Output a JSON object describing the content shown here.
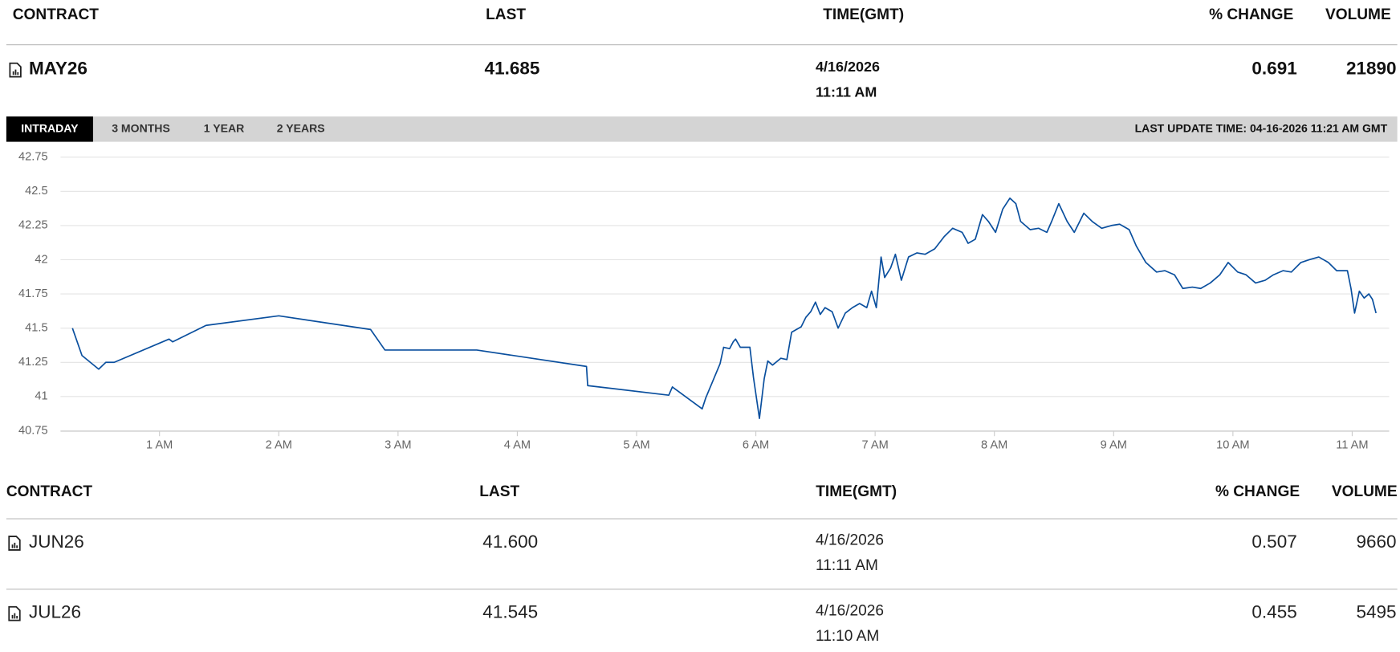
{
  "header": {
    "columns": [
      "CONTRACT",
      "LAST",
      "TIME(GMT)",
      "% CHANGE",
      "VOLUME"
    ]
  },
  "main_row": {
    "contract": "MAY26",
    "last": "41.685",
    "date": "4/16/2026",
    "time": "11:11 AM",
    "change": "0.691",
    "volume": "21890"
  },
  "tabs": [
    "INTRADAY",
    "3 MONTHS",
    "1 YEAR",
    "2 YEARS"
  ],
  "last_update": "LAST UPDATE TIME: 04-16-2026 11:21 AM GMT",
  "chart_data": {
    "type": "line",
    "color": "#0a4f9e",
    "grid": true,
    "x": [
      0.27,
      0.35,
      0.49,
      0.55,
      0.62,
      1.08,
      1.11,
      1.39,
      2.0,
      2.77,
      2.89,
      3.66,
      4.58,
      4.59,
      5.27,
      5.3,
      5.55,
      5.58,
      5.7,
      5.73,
      5.78,
      5.81,
      5.83,
      5.87,
      5.95,
      5.98,
      6.03,
      6.07,
      6.1,
      6.14,
      6.21,
      6.26,
      6.3,
      6.38,
      6.42,
      6.46,
      6.5,
      6.54,
      6.58,
      6.64,
      6.69,
      6.75,
      6.81,
      6.87,
      6.93,
      6.97,
      7.01,
      7.05,
      7.08,
      7.13,
      7.17,
      7.22,
      7.28,
      7.35,
      7.42,
      7.5,
      7.58,
      7.65,
      7.73,
      7.78,
      7.84,
      7.9,
      7.95,
      8.01,
      8.07,
      8.13,
      8.18,
      8.22,
      8.3,
      8.37,
      8.44,
      8.48,
      8.54,
      8.61,
      8.67,
      8.75,
      8.82,
      8.9,
      8.98,
      9.05,
      9.13,
      9.19,
      9.27,
      9.36,
      9.43,
      9.51,
      9.58,
      9.66,
      9.73,
      9.81,
      9.89,
      9.96,
      10.04,
      10.11,
      10.19,
      10.27,
      10.34,
      10.42,
      10.49,
      10.57,
      10.64,
      10.72,
      10.8,
      10.87,
      10.96,
      10.99,
      11.02,
      11.06,
      11.1,
      11.14,
      11.17,
      11.2
    ],
    "values": [
      41.5,
      41.3,
      41.2,
      41.25,
      41.25,
      41.42,
      41.4,
      41.52,
      41.59,
      41.49,
      41.34,
      41.34,
      41.22,
      41.08,
      41.01,
      41.07,
      40.91,
      40.99,
      41.24,
      41.36,
      41.35,
      41.4,
      41.42,
      41.36,
      41.36,
      41.14,
      40.84,
      41.13,
      41.26,
      41.23,
      41.28,
      41.27,
      41.47,
      41.51,
      41.58,
      41.62,
      41.69,
      41.6,
      41.65,
      41.62,
      41.5,
      41.61,
      41.65,
      41.68,
      41.65,
      41.77,
      41.65,
      42.02,
      41.87,
      41.94,
      42.04,
      41.85,
      42.02,
      42.05,
      42.04,
      42.08,
      42.17,
      42.23,
      42.2,
      42.12,
      42.15,
      42.33,
      42.28,
      42.2,
      42.37,
      42.45,
      42.41,
      42.28,
      42.22,
      42.23,
      42.2,
      42.28,
      42.41,
      42.28,
      42.2,
      42.34,
      42.28,
      42.23,
      42.25,
      42.26,
      42.22,
      42.1,
      41.98,
      41.91,
      41.92,
      41.89,
      41.79,
      41.8,
      41.79,
      41.83,
      41.89,
      41.98,
      41.91,
      41.89,
      41.83,
      41.85,
      41.89,
      41.92,
      41.91,
      41.98,
      42.0,
      42.02,
      41.98,
      41.92,
      41.92,
      41.79,
      41.61,
      41.77,
      41.72,
      41.75,
      41.71,
      41.61
    ],
    "xlim": [
      0.17,
      11.31
    ],
    "xticks": [
      {
        "value": 1,
        "label": "1 AM"
      },
      {
        "value": 2,
        "label": "2 AM"
      },
      {
        "value": 3,
        "label": "3 AM"
      },
      {
        "value": 4,
        "label": "4 AM"
      },
      {
        "value": 5,
        "label": "5 AM"
      },
      {
        "value": 6,
        "label": "6 AM"
      },
      {
        "value": 7,
        "label": "7 AM"
      },
      {
        "value": 8,
        "label": "8 AM"
      },
      {
        "value": 9,
        "label": "9 AM"
      },
      {
        "value": 10,
        "label": "10 AM"
      },
      {
        "value": 11,
        "label": "11 AM"
      }
    ],
    "ylim": [
      40.75,
      42.75
    ],
    "yticks": [
      42.75,
      42.5,
      42.25,
      42,
      41.75,
      41.5,
      41.25,
      41,
      40.75
    ]
  },
  "table": {
    "columns": [
      "CONTRACT",
      "LAST",
      "TIME(GMT)",
      "% CHANGE",
      "VOLUME"
    ],
    "rows": [
      {
        "contract": "JUN26",
        "last": "41.600",
        "date": "4/16/2026",
        "time": "11:11 AM",
        "change": "0.507",
        "volume": "9660"
      },
      {
        "contract": "JUL26",
        "last": "41.545",
        "date": "4/16/2026",
        "time": "11:10 AM",
        "change": "0.455",
        "volume": "5495"
      }
    ]
  }
}
